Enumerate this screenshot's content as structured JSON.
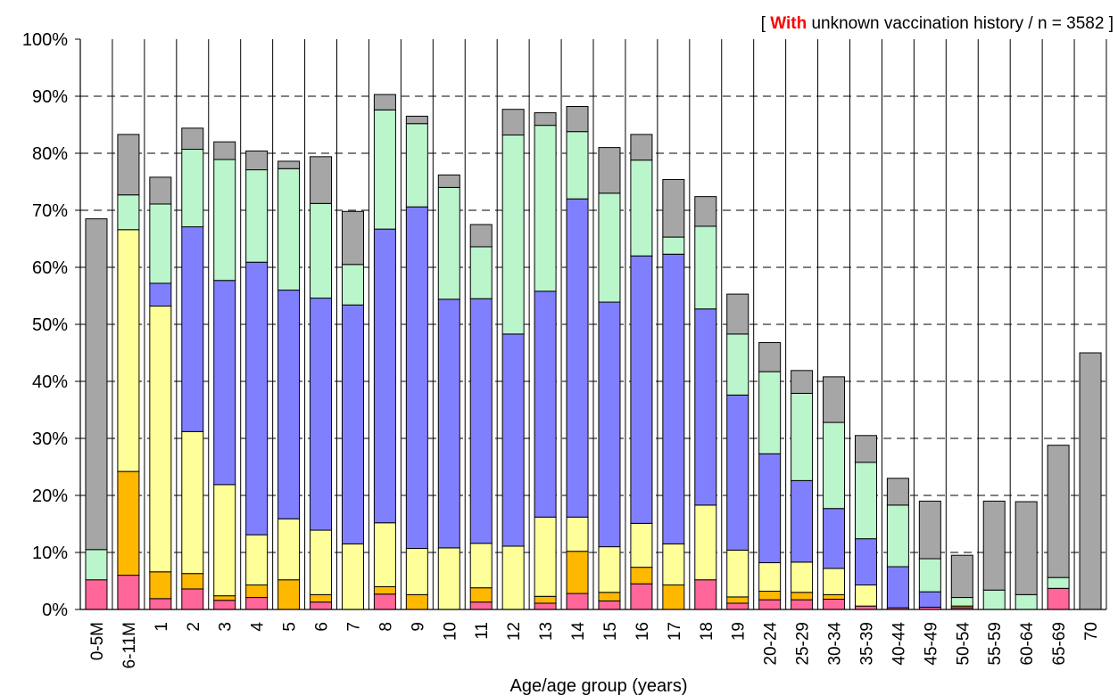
{
  "chart_data": {
    "type": "bar",
    "stacked": true,
    "note": {
      "open": "[ ",
      "highlight": "With",
      "rest": " unknown vaccination history  / n = 3582 ]",
      "highlight_color": "#ff0000"
    },
    "xlabel": "Age/age group (years)",
    "ylabel": "",
    "ylim": [
      0,
      100
    ],
    "y_ticks": [
      "0%",
      "10%",
      "20%",
      "30%",
      "40%",
      "50%",
      "60%",
      "70%",
      "80%",
      "90%",
      "100%"
    ],
    "grid": "horizontal dashed",
    "categories": [
      "0-5M",
      "6-11M",
      "1",
      "2",
      "3",
      "4",
      "5",
      "6",
      "7",
      "8",
      "9",
      "10",
      "11",
      "12",
      "13",
      "14",
      "15",
      "16",
      "17",
      "18",
      "19",
      "20-24",
      "25-29",
      "30-34",
      "35-39",
      "40-44",
      "45-49",
      "50-54",
      "55-59",
      "60-64",
      "65-69",
      "70"
    ],
    "series": [
      {
        "color": "#ff6699",
        "values": [
          5.2,
          6.0,
          1.9,
          3.6,
          1.6,
          2.1,
          0,
          1.3,
          0,
          2.7,
          0,
          0,
          1.3,
          0,
          1.1,
          2.8,
          1.5,
          4.5,
          0,
          5.2,
          1.1,
          1.7,
          1.7,
          1.8,
          0.6,
          0.3,
          0.4,
          0.3,
          0,
          0,
          3.7,
          0
        ]
      },
      {
        "color": "#ffb800",
        "values": [
          0,
          18.2,
          4.7,
          2.7,
          0.8,
          2.2,
          5.2,
          1.3,
          0,
          1.3,
          2.6,
          0,
          2.5,
          0,
          1.2,
          7.4,
          1.5,
          2.9,
          4.3,
          0,
          1.1,
          1.5,
          1.3,
          0.8,
          0,
          0,
          0,
          0.3,
          0,
          0,
          0,
          0
        ]
      },
      {
        "color": "#ffff99",
        "values": [
          0,
          42.4,
          46.6,
          24.9,
          19.5,
          8.8,
          10.7,
          11.3,
          11.5,
          11.2,
          8.1,
          10.8,
          7.8,
          11.1,
          13.9,
          6.0,
          8.0,
          7.7,
          7.2,
          13.1,
          8.2,
          5.0,
          5.3,
          4.6,
          3.7,
          0,
          0,
          0,
          0,
          0,
          0,
          0
        ]
      },
      {
        "color": "#8080ff",
        "values": [
          0,
          0,
          4.0,
          35.9,
          35.8,
          47.8,
          40.1,
          40.7,
          41.9,
          51.5,
          59.9,
          43.6,
          42.9,
          37.2,
          39.6,
          55.8,
          42.9,
          46.9,
          50.8,
          34.4,
          27.2,
          19.1,
          14.3,
          10.5,
          8.1,
          7.2,
          2.7,
          0,
          0,
          0,
          0,
          0
        ]
      },
      {
        "color": "#bbf5cc",
        "values": [
          5.3,
          6.1,
          13.9,
          13.6,
          21.2,
          16.2,
          21.3,
          16.6,
          7.1,
          20.9,
          14.6,
          19.6,
          9.1,
          34.9,
          29.1,
          11.8,
          19.1,
          16.8,
          3.0,
          14.5,
          10.7,
          14.4,
          15.3,
          15.1,
          13.4,
          10.8,
          5.8,
          1.5,
          3.4,
          2.6,
          1.9,
          0
        ]
      },
      {
        "color": "#a6a6a6",
        "values": [
          58.0,
          10.6,
          4.7,
          3.7,
          3.1,
          3.3,
          1.3,
          8.2,
          9.3,
          2.7,
          1.3,
          2.2,
          3.9,
          4.5,
          2.2,
          4.4,
          8.0,
          4.5,
          10.1,
          5.2,
          7.0,
          5.1,
          4.0,
          8.0,
          4.7,
          4.7,
          10.1,
          7.4,
          15.6,
          16.3,
          23.2,
          45.0
        ]
      }
    ]
  }
}
